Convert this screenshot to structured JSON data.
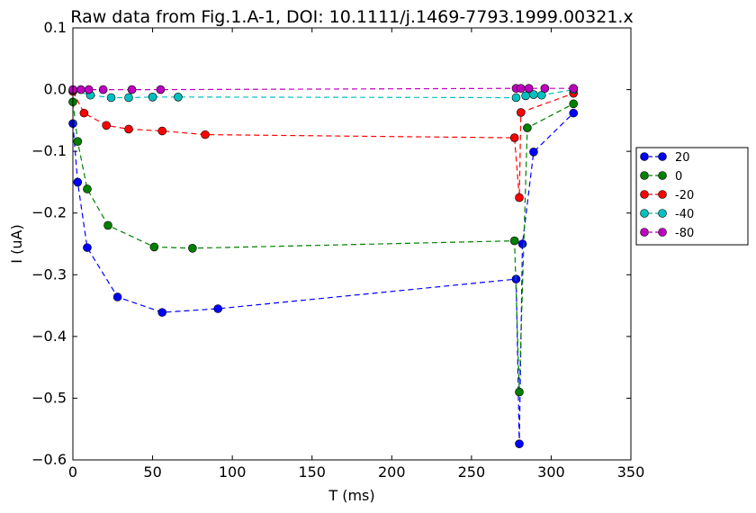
{
  "chart_data": {
    "type": "line",
    "title": "Raw data from Fig.1.A-1, DOI: 10.1111/j.1469-7793.1999.00321.x",
    "xlabel": "T (ms)",
    "ylabel": "I (uA)",
    "xlim": [
      0,
      350
    ],
    "ylim": [
      -0.6,
      0.1
    ],
    "xticks": [
      0,
      50,
      100,
      150,
      200,
      250,
      300,
      350
    ],
    "yticks": [
      0.1,
      0.0,
      -0.1,
      -0.2,
      -0.3,
      -0.4,
      -0.5,
      -0.6
    ],
    "xtick_labels": [
      "0",
      "50",
      "100",
      "150",
      "200",
      "250",
      "300",
      "350"
    ],
    "ytick_labels": [
      "0.1",
      "0.0",
      "−0.1",
      "−0.2",
      "−0.3",
      "−0.4",
      "−0.5",
      "−0.6"
    ],
    "grid": false,
    "legend_position": "outside-right",
    "line_style": "dashed",
    "marker": "circle",
    "series": [
      {
        "name": "20",
        "color": "#0000ff",
        "x": [
          0,
          3,
          9,
          28,
          56,
          91,
          278,
          280,
          282,
          289,
          314
        ],
        "y": [
          -0.055,
          -0.15,
          -0.256,
          -0.336,
          -0.361,
          -0.355,
          -0.307,
          -0.574,
          -0.25,
          -0.101,
          -0.038
        ]
      },
      {
        "name": "0",
        "color": "#008000",
        "x": [
          0,
          3,
          9,
          22,
          51,
          75,
          277,
          280,
          285,
          314
        ],
        "y": [
          -0.02,
          -0.084,
          -0.161,
          -0.22,
          -0.255,
          -0.257,
          -0.245,
          -0.49,
          -0.062,
          -0.023
        ]
      },
      {
        "name": "-20",
        "color": "#ff0000",
        "x": [
          0,
          7,
          21,
          35,
          56,
          83,
          277,
          280,
          281,
          314
        ],
        "y": [
          -0.003,
          -0.038,
          -0.058,
          -0.064,
          -0.067,
          -0.073,
          -0.078,
          -0.175,
          -0.037,
          -0.006
        ]
      },
      {
        "name": "-40",
        "color": "#00bfbf",
        "x": [
          0,
          11,
          24,
          35,
          50,
          66,
          278,
          284,
          289,
          294,
          314
        ],
        "y": [
          -0.001,
          -0.009,
          -0.013,
          -0.013,
          -0.012,
          -0.012,
          -0.013,
          -0.01,
          -0.008,
          -0.009,
          0.0
        ]
      },
      {
        "name": "-80",
        "color": "#bf00bf",
        "x": [
          0,
          5,
          10,
          19,
          37,
          55,
          278,
          281,
          286,
          296,
          314
        ],
        "y": [
          0.0,
          0.0,
          0.0,
          0.0,
          0.0,
          0.0,
          0.002,
          0.002,
          0.002,
          0.002,
          0.002
        ]
      }
    ]
  }
}
